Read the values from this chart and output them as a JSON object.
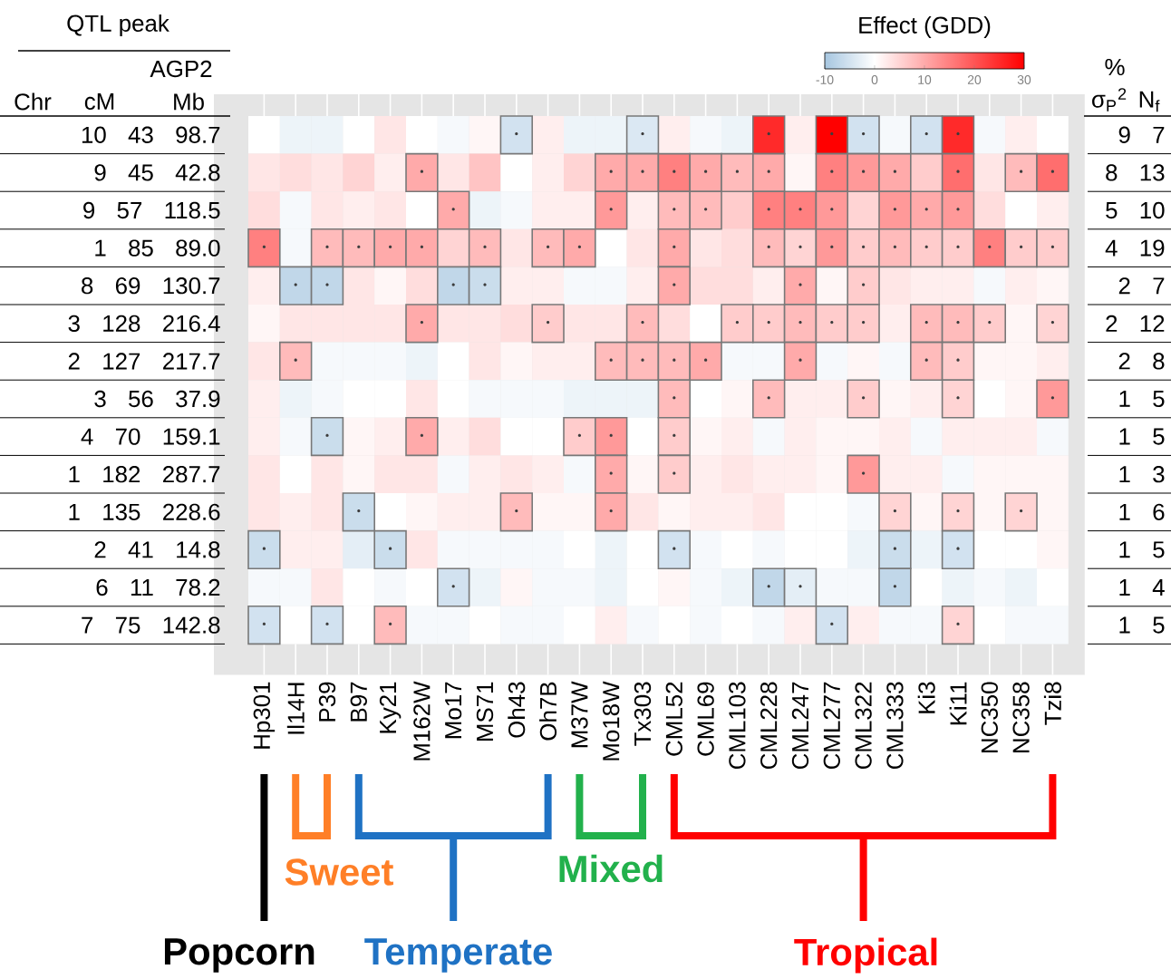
{
  "chart_data": {
    "type": "heatmap",
    "clabel": "Effect (GDD)",
    "clim": [
      -10,
      30
    ],
    "cticks": [
      -10,
      0,
      10,
      20,
      30
    ],
    "categories": [
      "Hp301",
      "Il14H",
      "P39",
      "B97",
      "Ky21",
      "M162W",
      "Mo17",
      "MS71",
      "Oh43",
      "Oh7B",
      "M37W",
      "Mo18W",
      "Tx303",
      "CML52",
      "CML69",
      "CML103",
      "CML228",
      "CML247",
      "CML277",
      "CML322",
      "CML333",
      "Ki3",
      "Ki11",
      "NC350",
      "NC358",
      "Tzi8"
    ],
    "y_categories": [
      "10 43 98.7",
      "9 45 42.8",
      "9 57 118.5",
      "1 85 89.0",
      "8 69 130.7",
      "3 128 216.4",
      "2 127 217.7",
      "3 56 37.9",
      "4 70 159.1",
      "1 182 287.7",
      "1 135 228.6",
      "2 41 14.8",
      "6 11 78.2",
      "7 75 142.8"
    ],
    "y2_categories": [
      "9 7",
      "8 13",
      "5 10",
      "4 19",
      "2 7",
      "2 12",
      "2 8",
      "1 5",
      "1 5",
      "1 3",
      "1 6",
      "1 5",
      "1 4",
      "1 5"
    ],
    "cells": [
      [
        0,
        -2,
        -2,
        0,
        3,
        0,
        -1,
        1,
        -5,
        2,
        -2,
        -2,
        -4,
        2,
        -1,
        -2,
        25,
        2,
        30,
        -5,
        -1,
        -5,
        25,
        -1,
        2,
        0
      ],
      [
        3,
        4,
        3,
        5,
        2,
        10,
        3,
        7,
        0,
        2,
        5,
        10,
        10,
        15,
        10,
        8,
        10,
        1,
        15,
        12,
        10,
        6,
        17,
        3,
        8,
        17
      ],
      [
        4,
        -1,
        3,
        2,
        3,
        0,
        10,
        -2,
        -1,
        2,
        2,
        12,
        2,
        8,
        8,
        6,
        15,
        15,
        12,
        5,
        12,
        10,
        12,
        4,
        0,
        2
      ],
      [
        15,
        -1,
        8,
        8,
        10,
        10,
        5,
        8,
        3,
        8,
        10,
        0,
        3,
        10,
        3,
        4,
        8,
        5,
        12,
        6,
        8,
        6,
        6,
        15,
        6,
        6
      ],
      [
        2,
        -7,
        -7,
        3,
        1,
        4,
        -7,
        -6,
        2,
        2,
        -1,
        -1,
        2,
        10,
        4,
        4,
        2,
        10,
        1,
        6,
        3,
        2,
        2,
        -1,
        2,
        1
      ],
      [
        1,
        3,
        3,
        3,
        3,
        10,
        3,
        3,
        4,
        6,
        3,
        3,
        8,
        4,
        0,
        6,
        6,
        8,
        6,
        6,
        2,
        8,
        8,
        6,
        1,
        5
      ],
      [
        3,
        8,
        -1,
        -1,
        -1,
        -2,
        0,
        3,
        1,
        2,
        2,
        8,
        8,
        8,
        10,
        -1,
        -1,
        10,
        -1,
        1,
        -1,
        8,
        6,
        1,
        1,
        2
      ],
      [
        2,
        -2,
        -1,
        0,
        0,
        3,
        0,
        -1,
        -1,
        -1,
        -2,
        -2,
        -2,
        8,
        0,
        1,
        8,
        2,
        2,
        6,
        1,
        2,
        5,
        0,
        1,
        12
      ],
      [
        2,
        -1,
        -6,
        1,
        2,
        10,
        2,
        4,
        0,
        0,
        6,
        12,
        0,
        6,
        1,
        2,
        -1,
        2,
        1,
        1,
        2,
        -1,
        2,
        2,
        2,
        -1
      ],
      [
        3,
        0,
        3,
        1,
        3,
        3,
        -1,
        2,
        3,
        2,
        -1,
        10,
        1,
        6,
        2,
        3,
        2,
        2,
        1,
        12,
        2,
        2,
        -1,
        1,
        1,
        1
      ],
      [
        3,
        2,
        3,
        -6,
        0,
        1,
        2,
        2,
        8,
        1,
        1,
        10,
        3,
        1,
        2,
        2,
        3,
        0,
        0,
        -1,
        5,
        1,
        5,
        1,
        5,
        1
      ],
      [
        -6,
        2,
        2,
        -3,
        -6,
        3,
        -1,
        -1,
        -1,
        -1,
        0,
        -2,
        0,
        -5,
        -1,
        0,
        -1,
        0,
        0,
        -2,
        -6,
        -2,
        -5,
        0,
        0,
        1
      ],
      [
        -1,
        -1,
        3,
        0,
        -1,
        0,
        -5,
        -2,
        1,
        -1,
        -1,
        -2,
        0,
        1,
        -1,
        -2,
        -7,
        -3,
        -1,
        -1,
        -7,
        0,
        -2,
        -1,
        -2,
        0
      ],
      [
        -5,
        0,
        -5,
        0,
        8,
        -1,
        -1,
        0,
        -1,
        -1,
        0,
        2,
        -1,
        0,
        -1,
        0,
        -1,
        2,
        -5,
        2,
        -1,
        -1,
        5,
        0,
        -1,
        -1
      ]
    ],
    "cell_labels": [
      [
        null,
        null,
        null,
        null,
        null,
        null,
        null,
        null,
        "•",
        null,
        null,
        null,
        "•",
        null,
        null,
        null,
        "•",
        null,
        "•",
        "•",
        null,
        "•",
        "•",
        null,
        null,
        null
      ],
      [
        null,
        null,
        null,
        null,
        null,
        "•",
        null,
        null,
        null,
        null,
        null,
        "•",
        "•",
        "•",
        "•",
        "•",
        "•",
        null,
        "•",
        "•",
        "•",
        null,
        "•",
        null,
        "•",
        "•"
      ],
      [
        null,
        null,
        null,
        null,
        null,
        null,
        "•",
        null,
        null,
        null,
        null,
        "•",
        null,
        "•",
        "•",
        null,
        "•",
        "•",
        "•",
        null,
        "•",
        "•",
        "•",
        null,
        null,
        null
      ],
      [
        "•",
        null,
        "•",
        "•",
        "•",
        "•",
        null,
        "•",
        null,
        "•",
        "•",
        null,
        null,
        "•",
        null,
        null,
        "•",
        "•",
        "•",
        "•",
        "•",
        "•",
        "•",
        "•",
        "•",
        "•"
      ],
      [
        null,
        "•",
        "•",
        null,
        null,
        null,
        "•",
        "•",
        null,
        null,
        null,
        null,
        null,
        "•",
        null,
        null,
        null,
        "•",
        null,
        "•",
        null,
        null,
        null,
        null,
        null,
        null
      ],
      [
        null,
        null,
        null,
        null,
        null,
        "•",
        null,
        null,
        null,
        "•",
        null,
        null,
        "•",
        null,
        null,
        "•",
        "•",
        "•",
        "•",
        "•",
        null,
        "•",
        "•",
        "•",
        null,
        "•"
      ],
      [
        null,
        "•",
        null,
        null,
        null,
        null,
        null,
        null,
        null,
        null,
        null,
        "•",
        "•",
        "•",
        "•",
        null,
        null,
        "•",
        null,
        null,
        null,
        "•",
        "•",
        null,
        null,
        null
      ],
      [
        null,
        null,
        null,
        null,
        null,
        null,
        null,
        null,
        null,
        null,
        null,
        null,
        null,
        "•",
        null,
        null,
        "•",
        null,
        null,
        "•",
        null,
        null,
        "•",
        null,
        null,
        "•"
      ],
      [
        null,
        null,
        "•",
        null,
        null,
        "•",
        null,
        null,
        null,
        null,
        "•",
        "•",
        null,
        "•",
        null,
        null,
        null,
        null,
        null,
        null,
        null,
        null,
        null,
        null,
        null,
        null
      ],
      [
        null,
        null,
        null,
        null,
        null,
        null,
        null,
        null,
        null,
        null,
        null,
        "•",
        null,
        "•",
        null,
        null,
        null,
        null,
        null,
        "•",
        null,
        null,
        null,
        null,
        null,
        null
      ],
      [
        null,
        null,
        null,
        "•",
        null,
        null,
        null,
        null,
        "•",
        null,
        null,
        "•",
        null,
        null,
        null,
        null,
        null,
        null,
        null,
        null,
        "•",
        null,
        "•",
        null,
        "•",
        null
      ],
      [
        "•",
        null,
        null,
        null,
        "•",
        null,
        null,
        null,
        null,
        null,
        null,
        null,
        null,
        "•",
        null,
        null,
        null,
        null,
        null,
        null,
        "•",
        null,
        "•",
        null,
        null,
        null
      ],
      [
        null,
        null,
        null,
        null,
        null,
        null,
        "•",
        null,
        null,
        null,
        null,
        null,
        null,
        null,
        null,
        null,
        "•",
        "•",
        null,
        null,
        "•",
        null,
        null,
        null,
        null,
        null
      ],
      [
        "•",
        null,
        "•",
        null,
        "•",
        null,
        null,
        null,
        null,
        null,
        null,
        null,
        null,
        null,
        null,
        null,
        null,
        null,
        "•",
        null,
        null,
        null,
        "•",
        null,
        null,
        null
      ]
    ],
    "annotations": [
      "QTL peak",
      "AGP2",
      "Chr",
      "cM",
      "Mb",
      "%",
      "σ$_{P}$$^{2}$",
      "N$_{f}$",
      "Popcorn",
      "Sweet",
      "Temperate",
      "Mixed",
      "Tropical"
    ]
  }
}
